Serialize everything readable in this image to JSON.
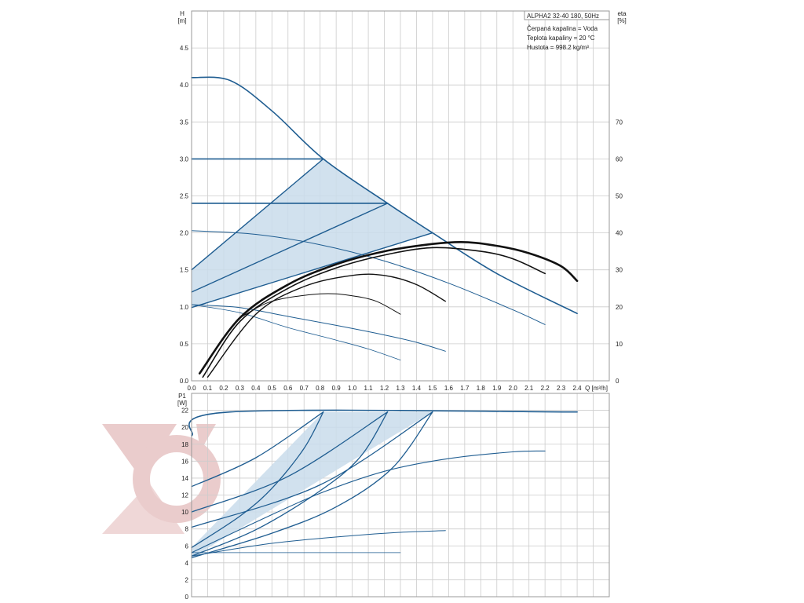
{
  "legend": {
    "lines": [
      "ALPHA2 32-40 180, 50Hz",
      "Čerpaná kapalina = Voda",
      "Teplota kapaliny = 20 °C",
      "Hustota = 998.2 kg/m³"
    ]
  },
  "colors": {
    "curve": "#1f5d91",
    "eta": "#111111",
    "shade": "#c9dceb",
    "grid": "#cccccc",
    "watermark": "#d9a3a3"
  },
  "chart_data": [
    {
      "type": "line",
      "xlabel": "Q [m³/h]",
      "ylabel_lines": [
        "H",
        "[m]"
      ],
      "y2label_lines": [
        "eta",
        "[%]"
      ],
      "xlim": [
        0,
        2.6
      ],
      "ylim": [
        0,
        5.0
      ],
      "y2lim": [
        0,
        100
      ],
      "x_ticks": [
        "0.0",
        "0.1",
        "0.2",
        "0.3",
        "0.4",
        "0.5",
        "0.6",
        "0.7",
        "0.8",
        "0.9",
        "1.0",
        "1.1",
        "1.2",
        "1.3",
        "1.4",
        "1.5",
        "1.6",
        "1.7",
        "1.8",
        "1.9",
        "2.0",
        "2.1",
        "2.2",
        "2.3",
        "2.4"
      ],
      "y_ticks": [
        "0.0",
        "0.5",
        "1.0",
        "1.5",
        "2.0",
        "2.5",
        "3.0",
        "3.5",
        "4.0",
        "4.5"
      ],
      "y2_ticks": [
        "0",
        "10",
        "20",
        "30",
        "40",
        "50",
        "60",
        "70"
      ],
      "grid": true,
      "shaded_region": [
        [
          0,
          1.5
        ],
        [
          0.82,
          3.0
        ],
        [
          1.22,
          2.4
        ],
        [
          1.5,
          2.0
        ],
        [
          0,
          0.99
        ]
      ],
      "series": [
        {
          "role": "H",
          "width": 1.6,
          "points": [
            [
              0,
              4.1
            ],
            [
              0.24,
              4.06
            ],
            [
              0.5,
              3.65
            ],
            [
              0.82,
              3.0
            ],
            [
              1.22,
              2.4
            ],
            [
              1.5,
              2.0
            ],
            [
              1.9,
              1.45
            ],
            [
              2.4,
              0.91
            ]
          ]
        },
        {
          "role": "H",
          "width": 1.6,
          "points": [
            [
              0,
              3.0
            ],
            [
              0.82,
              3.0
            ]
          ]
        },
        {
          "role": "H",
          "width": 1.6,
          "points": [
            [
              0,
              2.4
            ],
            [
              1.22,
              2.4
            ]
          ]
        },
        {
          "role": "H",
          "width": 1.4,
          "points": [
            [
              0,
              1.5
            ],
            [
              0.82,
              3.0
            ]
          ]
        },
        {
          "role": "H",
          "width": 1.4,
          "points": [
            [
              0,
              1.2
            ],
            [
              1.22,
              2.4
            ]
          ]
        },
        {
          "role": "H",
          "width": 1.4,
          "points": [
            [
              0,
              0.99
            ],
            [
              1.5,
              2.0
            ]
          ]
        },
        {
          "role": "H",
          "width": 1.0,
          "points": [
            [
              0,
              2.03
            ],
            [
              0.4,
              1.98
            ],
            [
              0.8,
              1.84
            ],
            [
              1.2,
              1.62
            ],
            [
              1.6,
              1.32
            ],
            [
              2.0,
              0.96
            ],
            [
              2.2,
              0.76
            ]
          ]
        },
        {
          "role": "H",
          "width": 1.0,
          "points": [
            [
              0,
              1.03
            ],
            [
              0.3,
              0.99
            ],
            [
              0.6,
              0.87
            ],
            [
              0.9,
              0.75
            ],
            [
              1.2,
              0.62
            ],
            [
              1.4,
              0.52
            ],
            [
              1.58,
              0.4
            ]
          ]
        },
        {
          "role": "H",
          "width": 0.8,
          "points": [
            [
              0,
              1.03
            ],
            [
              0.3,
              0.92
            ],
            [
              0.6,
              0.72
            ],
            [
              0.9,
              0.55
            ],
            [
              1.1,
              0.43
            ],
            [
              1.3,
              0.28
            ]
          ]
        },
        {
          "role": "eta",
          "width": 2.6,
          "points": [
            [
              0.05,
              2
            ],
            [
              0.3,
              17
            ],
            [
              0.6,
              26
            ],
            [
              0.9,
              31.5
            ],
            [
              1.2,
              35
            ],
            [
              1.5,
              37
            ],
            [
              1.7,
              37.5
            ],
            [
              1.9,
              36.5
            ],
            [
              2.1,
              34.5
            ],
            [
              2.3,
              31
            ],
            [
              2.4,
              27
            ]
          ]
        },
        {
          "role": "eta",
          "width": 1.6,
          "points": [
            [
              0.07,
              1
            ],
            [
              0.3,
              16
            ],
            [
              0.6,
              25
            ],
            [
              0.9,
              30.5
            ],
            [
              1.2,
              34
            ],
            [
              1.5,
              36
            ],
            [
              1.8,
              35
            ],
            [
              2.0,
              33
            ],
            [
              2.2,
              29
            ]
          ]
        },
        {
          "role": "eta",
          "width": 1.4,
          "points": [
            [
              0.1,
              1
            ],
            [
              0.4,
              18
            ],
            [
              0.7,
              25.5
            ],
            [
              1.0,
              28.5
            ],
            [
              1.2,
              28.5
            ],
            [
              1.4,
              26
            ],
            [
              1.58,
              21.5
            ]
          ]
        },
        {
          "role": "eta",
          "width": 1.0,
          "points": [
            [
              0.3,
              17
            ],
            [
              0.5,
              21.5
            ],
            [
              0.8,
              23.5
            ],
            [
              1.0,
              23
            ],
            [
              1.15,
              21.5
            ],
            [
              1.3,
              18
            ]
          ]
        }
      ]
    },
    {
      "type": "line",
      "xlabel": "",
      "ylabel_lines": [
        "P1",
        "[W]"
      ],
      "xlim": [
        0,
        2.6
      ],
      "ylim": [
        0,
        24
      ],
      "y_ticks": [
        "0",
        "2",
        "4",
        "6",
        "8",
        "10",
        "12",
        "14",
        "16",
        "18",
        "20",
        "22"
      ],
      "grid": true,
      "shaded_region": [
        [
          0,
          5.8
        ],
        [
          0.82,
          21.8
        ],
        [
          1.5,
          21.8
        ],
        [
          0,
          4.6
        ]
      ],
      "series": [
        {
          "role": "P1",
          "width": 1.6,
          "points": [
            [
              0,
              19
            ],
            [
              0.24,
              21.8
            ],
            [
              2.4,
              21.8
            ]
          ]
        },
        {
          "role": "P1",
          "width": 1.3,
          "points": [
            [
              0,
              5.8
            ],
            [
              0.3,
              9.5
            ],
            [
              0.5,
              12.8
            ],
            [
              0.7,
              17.5
            ],
            [
              0.82,
              21.8
            ]
          ]
        },
        {
          "role": "P1",
          "width": 1.3,
          "points": [
            [
              0,
              4.8
            ],
            [
              0.4,
              7.9
            ],
            [
              0.8,
              12.5
            ],
            [
              1.05,
              16.5
            ],
            [
              1.22,
              21.8
            ]
          ]
        },
        {
          "role": "P1",
          "width": 1.3,
          "points": [
            [
              0,
              4.6
            ],
            [
              0.5,
              7.5
            ],
            [
              0.9,
              10.6
            ],
            [
              1.25,
              15.2
            ],
            [
              1.5,
              21.8
            ]
          ]
        },
        {
          "role": "P1",
          "width": 1.3,
          "points": [
            [
              0,
              13
            ],
            [
              0.4,
              16.4
            ],
            [
              0.82,
              21.8
            ]
          ]
        },
        {
          "role": "P1",
          "width": 1.3,
          "points": [
            [
              0,
              10
            ],
            [
              0.6,
              14.2
            ],
            [
              1.22,
              21.8
            ]
          ]
        },
        {
          "role": "P1",
          "width": 1.3,
          "points": [
            [
              0,
              8.2
            ],
            [
              0.8,
              13.2
            ],
            [
              1.5,
              21.8
            ]
          ]
        },
        {
          "role": "P1",
          "width": 1.1,
          "points": [
            [
              0,
              5.2
            ],
            [
              0.4,
              8.8
            ],
            [
              0.8,
              12.2
            ],
            [
              1.2,
              14.8
            ],
            [
              1.6,
              16.3
            ],
            [
              2.0,
              17.1
            ],
            [
              2.2,
              17.2
            ]
          ]
        },
        {
          "role": "P1",
          "width": 1.0,
          "points": [
            [
              0,
              4.8
            ],
            [
              0.5,
              6.3
            ],
            [
              1.0,
              7.2
            ],
            [
              1.3,
              7.6
            ],
            [
              1.58,
              7.8
            ]
          ]
        },
        {
          "role": "P1",
          "width": 0.8,
          "points": [
            [
              0,
              5.2
            ],
            [
              1.3,
              5.2
            ]
          ]
        }
      ]
    }
  ]
}
